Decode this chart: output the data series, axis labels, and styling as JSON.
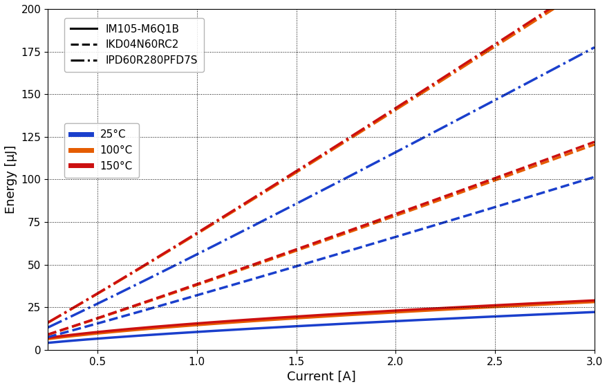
{
  "title": "",
  "xlabel": "Current [A]",
  "ylabel": "Energy [μJ]",
  "xlim": [
    0.25,
    3.0
  ],
  "ylim": [
    0,
    200
  ],
  "xticks": [
    0.5,
    1.0,
    1.5,
    2.0,
    2.5,
    3.0
  ],
  "yticks": [
    0,
    25,
    50,
    75,
    100,
    125,
    150,
    175,
    200
  ],
  "colors": {
    "blue": "#1a3fcc",
    "orange": "#e55c00",
    "red": "#cc1010"
  },
  "devices": [
    "IM105-M6Q1B",
    "IKD04N60RC2",
    "IPD60R280PFD7S"
  ],
  "linestyles": [
    "solid",
    "dashed",
    "dashdot"
  ],
  "temps": [
    "25°C",
    "100°C",
    "150°C"
  ],
  "temp_color_keys": [
    "blue",
    "orange",
    "red"
  ],
  "curves": {
    "IM105-M6Q1B": {
      "25C": {
        "a": 10.5,
        "power": 0.68
      },
      "100C": {
        "a": 14.5,
        "power": 0.6
      },
      "150C": {
        "a": 15.5,
        "power": 0.57
      }
    },
    "IKD04N60RC2": {
      "25C": {
        "a": 32.0,
        "power": 1.05
      },
      "100C": {
        "a": 38.0,
        "power": 1.05
      },
      "150C": {
        "a": 38.5,
        "power": 1.05
      }
    },
    "IPD60R280PFD7S": {
      "25C": {
        "a": 56.0,
        "power": 1.05
      },
      "100C": {
        "a": 68.0,
        "power": 1.05
      },
      "150C": {
        "a": 68.5,
        "power": 1.05
      }
    }
  },
  "linewidth": 2.5,
  "figsize": [
    8.79,
    5.61
  ],
  "dpi": 100
}
